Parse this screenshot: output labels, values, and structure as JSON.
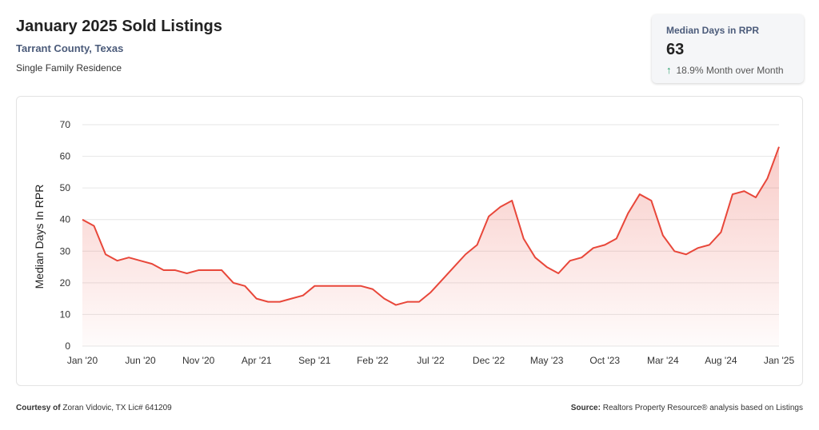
{
  "header": {
    "title": "January 2025 Sold Listings",
    "location": "Tarrant County, Texas",
    "property_type": "Single Family Residence"
  },
  "kpi": {
    "label": "Median Days in RPR",
    "value": "63",
    "change_text": "18.9% Month over Month",
    "arrow_icon": "arrow-up-icon",
    "arrow_color": "#2aa06b"
  },
  "footer": {
    "courtesy_label": "Courtesy of",
    "courtesy_text": "Zoran Vidovic, TX Lic# 641209",
    "source_label": "Source:",
    "source_text": "Realtors Property Resource® analysis based on Listings"
  },
  "chart_data": {
    "type": "area",
    "ylabel": "Median Days In RPR",
    "ylim": [
      0,
      70
    ],
    "yticks": [
      0,
      10,
      20,
      30,
      40,
      50,
      60,
      70
    ],
    "grid": true,
    "line_color": "#e8473a",
    "x_tick_labels": [
      "Jan '20",
      "Jun '20",
      "Nov '20",
      "Apr '21",
      "Sep '21",
      "Feb '22",
      "Jul '22",
      "Dec '22",
      "May '23",
      "Oct '23",
      "Mar '24",
      "Aug '24",
      "Jan '25"
    ],
    "x": [
      "Jan '20",
      "Feb '20",
      "Mar '20",
      "Apr '20",
      "May '20",
      "Jun '20",
      "Jul '20",
      "Aug '20",
      "Sep '20",
      "Oct '20",
      "Nov '20",
      "Dec '20",
      "Jan '21",
      "Feb '21",
      "Mar '21",
      "Apr '21",
      "May '21",
      "Jun '21",
      "Jul '21",
      "Aug '21",
      "Sep '21",
      "Oct '21",
      "Nov '21",
      "Dec '21",
      "Jan '22",
      "Feb '22",
      "Mar '22",
      "Apr '22",
      "May '22",
      "Jun '22",
      "Jul '22",
      "Aug '22",
      "Sep '22",
      "Oct '22",
      "Nov '22",
      "Dec '22",
      "Jan '23",
      "Feb '23",
      "Mar '23",
      "Apr '23",
      "May '23",
      "Jun '23",
      "Jul '23",
      "Aug '23",
      "Sep '23",
      "Oct '23",
      "Nov '23",
      "Dec '23",
      "Jan '24",
      "Feb '24",
      "Mar '24",
      "Apr '24",
      "May '24",
      "Jun '24",
      "Jul '24",
      "Aug '24",
      "Sep '24",
      "Oct '24",
      "Nov '24",
      "Dec '24",
      "Jan '25"
    ],
    "values": [
      40,
      38,
      29,
      27,
      28,
      27,
      26,
      24,
      24,
      23,
      24,
      24,
      24,
      20,
      19,
      15,
      14,
      14,
      15,
      16,
      19,
      19,
      19,
      19,
      19,
      18,
      15,
      13,
      14,
      14,
      17,
      21,
      25,
      29,
      32,
      41,
      44,
      46,
      34,
      28,
      25,
      23,
      27,
      28,
      31,
      32,
      34,
      42,
      48,
      46,
      35,
      30,
      29,
      31,
      32,
      36,
      48,
      49,
      47,
      53,
      63
    ]
  }
}
